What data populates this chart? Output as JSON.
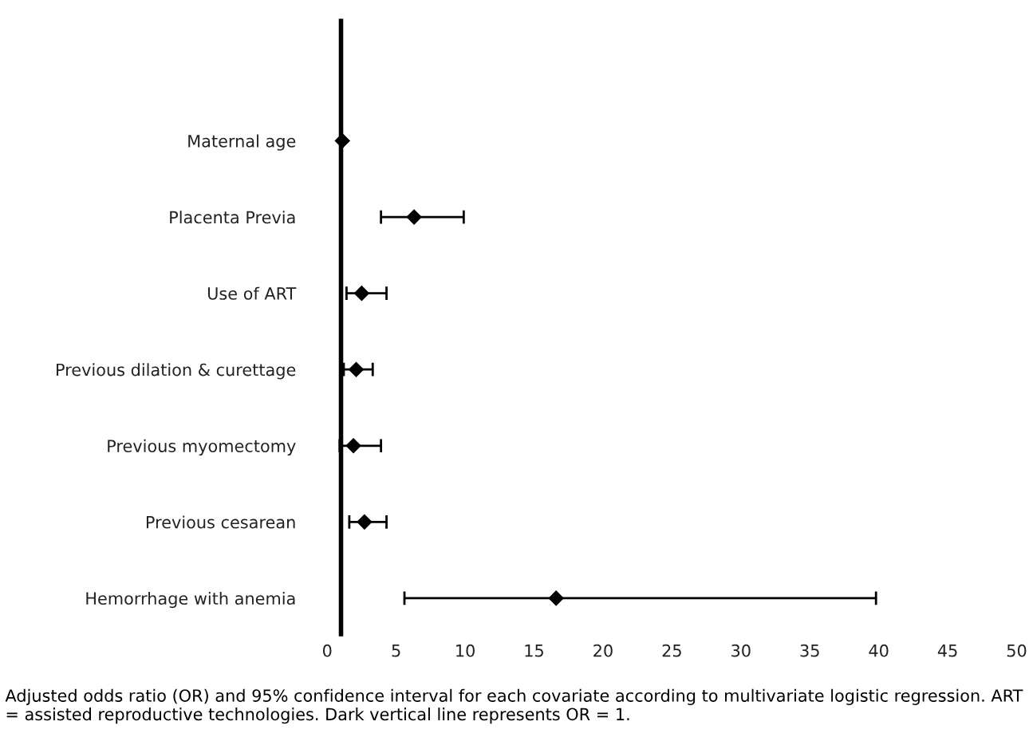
{
  "chart_data": {
    "type": "scatter",
    "orientation": "horizontal",
    "categories": [
      "Maternal age",
      "Placenta Previa",
      "Use of ART",
      "Previous dilation & curettage",
      "Previous myomectomy",
      "Previous cesarean",
      "Hemorrhage with anemia"
    ],
    "values": [
      1.1,
      6.3,
      2.5,
      2.1,
      1.9,
      2.7,
      16.6
    ],
    "errors": [
      null,
      [
        3.9,
        9.9
      ],
      [
        1.4,
        4.3
      ],
      [
        1.2,
        3.3
      ],
      [
        0.9,
        3.9
      ],
      [
        1.6,
        4.3
      ],
      [
        5.6,
        39.8
      ]
    ],
    "color": "#000000",
    "marker": "diamond",
    "xlim": [
      0,
      50
    ],
    "xticks": [
      0,
      5,
      10,
      15,
      20,
      25,
      30,
      35,
      40,
      45,
      50
    ],
    "ref_lines": [
      {
        "axis": "x",
        "value": 1,
        "color": "#000000"
      }
    ],
    "grid": false,
    "legend": false,
    "annotations": [
      "Adjusted odds ratio (OR) and 95% confidence interval for each covariate according to multivariate logistic regression. ART = assisted reproductive technologies. Dark vertical line represents OR = 1."
    ]
  }
}
